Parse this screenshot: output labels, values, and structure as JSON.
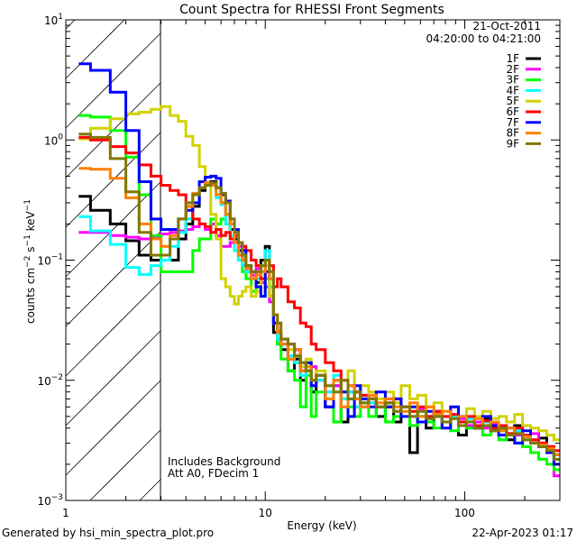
{
  "chart_data": {
    "type": "line",
    "style": "step-histogram",
    "title": "Count Spectra for RHESSI Front Segments",
    "xlabel": "Energy (keV)",
    "ylabel": {
      "base": "counts cm",
      "e1": "−2",
      "mid1": " s",
      "e2": "−1",
      "mid2": " keV",
      "e3": "−1"
    },
    "xscale": "log",
    "yscale": "log",
    "xlim": [
      1,
      300
    ],
    "ylim": [
      0.001,
      10
    ],
    "x_tick_labels": [
      "1",
      "10",
      "100"
    ],
    "y_tick_labels": [
      {
        "base": "10",
        "exp": "−3",
        "value": 0.001
      },
      {
        "base": "10",
        "exp": "−2",
        "value": 0.01
      },
      {
        "base": "10",
        "exp": "−1",
        "value": 0.1
      },
      {
        "base": "10",
        "exp": "0",
        "value": 1
      },
      {
        "base": "10",
        "exp": "1",
        "value": 10
      }
    ],
    "hatched_region_keV": [
      1,
      3
    ],
    "legend_header": {
      "date": "21-Oct-2011",
      "time_range": "04:20:00 to 04:21:00"
    },
    "legend_placement": "top-right",
    "annotations": [
      "Includes Background",
      "Att A0, FDecim 1"
    ],
    "energy_edges_keV": [
      1.16,
      1.33,
      1.67,
      2,
      2.33,
      2.67,
      3,
      3.33,
      3.67,
      4,
      4.33,
      4.67,
      5,
      5.33,
      5.67,
      6,
      6.33,
      6.67,
      7,
      7.33,
      7.67,
      8,
      8.5,
      9,
      9.5,
      10,
      10.5,
      11,
      11.5,
      12,
      13,
      14,
      15,
      16,
      17,
      18,
      20,
      22,
      24,
      26,
      28,
      30,
      33,
      36,
      40,
      44,
      48,
      53,
      58,
      64,
      70,
      77,
      85,
      93,
      102,
      112,
      123,
      135,
      148,
      162,
      178,
      195,
      214,
      235,
      258,
      280,
      300
    ],
    "series": [
      {
        "name": "1F",
        "color": "#000000",
        "values": [
          0.34,
          0.26,
          0.2,
          0.145,
          0.11,
          0.1,
          0.1,
          0.1,
          0.15,
          0.2,
          0.28,
          0.38,
          0.42,
          0.45,
          0.4,
          0.3,
          0.24,
          0.18,
          0.15,
          0.12,
          0.1,
          0.08,
          0.08,
          0.065,
          0.1,
          0.13,
          0.05,
          0.025,
          0.02,
          0.018,
          0.012,
          0.015,
          0.01,
          0.012,
          0.008,
          0.01,
          0.006,
          0.009,
          0.0045,
          0.007,
          0.008,
          0.006,
          0.007,
          0.005,
          0.006,
          0.0045,
          0.006,
          0.0025,
          0.005,
          0.004,
          0.0055,
          0.0045,
          0.005,
          0.0035,
          0.0045,
          0.004,
          0.0048,
          0.0038,
          0.004,
          0.0032,
          0.0042,
          0.0035,
          0.003,
          0.0033,
          0.0028,
          0.0024
        ]
      },
      {
        "name": "2F",
        "color": "#ff00ff",
        "values": [
          0.17,
          0.17,
          0.16,
          0.155,
          0.15,
          0.155,
          0.165,
          0.17,
          0.175,
          0.18,
          0.19,
          0.2,
          0.18,
          0.2,
          0.16,
          0.13,
          0.13,
          0.14,
          0.12,
          0.13,
          0.1,
          0.09,
          0.075,
          0.085,
          0.065,
          0.06,
          0.045,
          0.03,
          0.025,
          0.022,
          0.02,
          0.018,
          0.014,
          0.012,
          0.013,
          0.01,
          0.008,
          0.009,
          0.007,
          0.008,
          0.006,
          0.007,
          0.0065,
          0.006,
          0.007,
          0.0055,
          0.006,
          0.005,
          0.0058,
          0.005,
          0.0052,
          0.0045,
          0.005,
          0.0048,
          0.0042,
          0.0045,
          0.004,
          0.0043,
          0.0038,
          0.004,
          0.0035,
          0.0032,
          0.0036,
          0.003,
          0.0028,
          0.0016
        ]
      },
      {
        "name": "3F",
        "color": "#00ff00",
        "values": [
          1.6,
          1.55,
          1.2,
          0.72,
          0.35,
          0.16,
          0.08,
          0.08,
          0.08,
          0.08,
          0.12,
          0.15,
          0.15,
          0.22,
          0.2,
          0.22,
          0.2,
          0.15,
          0.12,
          0.1,
          0.08,
          0.07,
          0.055,
          0.06,
          0.05,
          0.07,
          0.06,
          0.03,
          0.02,
          0.015,
          0.012,
          0.01,
          0.006,
          0.011,
          0.005,
          0.008,
          0.007,
          0.0045,
          0.007,
          0.006,
          0.005,
          0.0065,
          0.005,
          0.006,
          0.0045,
          0.005,
          0.006,
          0.0042,
          0.005,
          0.0045,
          0.004,
          0.005,
          0.0038,
          0.0045,
          0.004,
          0.0042,
          0.0035,
          0.004,
          0.0032,
          0.0036,
          0.003,
          0.0028,
          0.0025,
          0.0022,
          0.002,
          0.0018
        ]
      },
      {
        "name": "4F",
        "color": "#00ffff",
        "values": [
          0.23,
          0.175,
          0.135,
          0.087,
          0.076,
          0.09,
          0.1,
          0.13,
          0.17,
          0.22,
          0.3,
          0.4,
          0.44,
          0.42,
          0.33,
          0.29,
          0.2,
          0.16,
          0.12,
          0.1,
          0.09,
          0.08,
          0.07,
          0.07,
          0.09,
          0.12,
          0.06,
          0.03,
          0.022,
          0.02,
          0.016,
          0.014,
          0.011,
          0.012,
          0.009,
          0.01,
          0.008,
          0.011,
          0.007,
          0.008,
          0.006,
          0.0075,
          0.0065,
          0.006,
          0.007,
          0.0055,
          0.006,
          0.005,
          0.0055,
          0.0048,
          0.0052,
          0.0045,
          0.005,
          0.0042,
          0.0048,
          0.004,
          0.0045,
          0.0038,
          0.004,
          0.0035,
          0.0038,
          0.0032,
          0.003,
          0.0028,
          0.0026,
          0.0022
        ]
      },
      {
        "name": "5F",
        "color": "#d2d200",
        "values": [
          1.02,
          1.25,
          1.5,
          1.65,
          1.7,
          1.8,
          1.9,
          1.6,
          1.43,
          1.07,
          0.9,
          0.6,
          0.42,
          0.24,
          0.15,
          0.07,
          0.06,
          0.05,
          0.043,
          0.05,
          0.055,
          0.06,
          0.05,
          0.055,
          0.07,
          0.09,
          0.05,
          0.03,
          0.026,
          0.02,
          0.018,
          0.016,
          0.013,
          0.015,
          0.01,
          0.012,
          0.009,
          0.01,
          0.008,
          0.012,
          0.007,
          0.009,
          0.008,
          0.007,
          0.008,
          0.0065,
          0.009,
          0.007,
          0.0075,
          0.006,
          0.0065,
          0.0055,
          0.006,
          0.005,
          0.0058,
          0.005,
          0.0055,
          0.0048,
          0.005,
          0.0045,
          0.0052,
          0.0042,
          0.004,
          0.0038,
          0.0035,
          0.0032
        ]
      },
      {
        "name": "6F",
        "color": "#ff0000",
        "values": [
          1.05,
          1.0,
          0.88,
          0.78,
          0.62,
          0.5,
          0.42,
          0.38,
          0.35,
          0.28,
          0.22,
          0.2,
          0.19,
          0.17,
          0.18,
          0.16,
          0.17,
          0.15,
          0.16,
          0.14,
          0.13,
          0.12,
          0.1,
          0.09,
          0.07,
          0.1,
          0.09,
          0.06,
          0.07,
          0.06,
          0.045,
          0.04,
          0.03,
          0.028,
          0.02,
          0.018,
          0.014,
          0.012,
          0.01,
          0.009,
          0.008,
          0.0075,
          0.007,
          0.006,
          0.0065,
          0.007,
          0.006,
          0.0055,
          0.006,
          0.005,
          0.0055,
          0.005,
          0.0052,
          0.0045,
          0.005,
          0.0042,
          0.0046,
          0.004,
          0.0042,
          0.0036,
          0.004,
          0.0035,
          0.0032,
          0.003,
          0.0028,
          0.0026
        ]
      },
      {
        "name": "7F",
        "color": "#0000ff",
        "values": [
          4.3,
          3.8,
          2.5,
          1.2,
          0.45,
          0.22,
          0.18,
          0.18,
          0.22,
          0.26,
          0.3,
          0.45,
          0.49,
          0.5,
          0.48,
          0.35,
          0.31,
          0.22,
          0.18,
          0.14,
          0.12,
          0.09,
          0.07,
          0.06,
          0.05,
          0.08,
          0.07,
          0.03,
          0.025,
          0.02,
          0.015,
          0.018,
          0.012,
          0.014,
          0.009,
          0.011,
          0.006,
          0.01,
          0.008,
          0.005,
          0.009,
          0.007,
          0.006,
          0.008,
          0.006,
          0.007,
          0.005,
          0.006,
          0.0045,
          0.0055,
          0.005,
          0.004,
          0.006,
          0.005,
          0.0045,
          0.004,
          0.005,
          0.0042,
          0.0035,
          0.004,
          0.003,
          0.0038,
          0.003,
          0.0028,
          0.0025,
          0.002
        ]
      },
      {
        "name": "8F",
        "color": "#ff8000",
        "values": [
          0.58,
          0.57,
          0.48,
          0.33,
          0.2,
          0.15,
          0.13,
          0.16,
          0.22,
          0.28,
          0.36,
          0.4,
          0.44,
          0.42,
          0.35,
          0.3,
          0.24,
          0.2,
          0.14,
          0.11,
          0.1,
          0.085,
          0.07,
          0.075,
          0.08,
          0.1,
          0.07,
          0.035,
          0.025,
          0.02,
          0.015,
          0.018,
          0.012,
          0.013,
          0.01,
          0.011,
          0.007,
          0.01,
          0.006,
          0.009,
          0.007,
          0.006,
          0.0075,
          0.0065,
          0.007,
          0.006,
          0.0055,
          0.0065,
          0.005,
          0.006,
          0.0052,
          0.0055,
          0.0048,
          0.005,
          0.0045,
          0.0048,
          0.0042,
          0.0045,
          0.0038,
          0.004,
          0.0036,
          0.0034,
          0.003,
          0.0029,
          0.0027,
          0.0024
        ]
      },
      {
        "name": "9F",
        "color": "#807800",
        "values": [
          1.12,
          1.05,
          0.7,
          0.37,
          0.17,
          0.11,
          0.11,
          0.15,
          0.22,
          0.3,
          0.35,
          0.4,
          0.42,
          0.44,
          0.4,
          0.36,
          0.3,
          0.22,
          0.17,
          0.14,
          0.11,
          0.09,
          0.08,
          0.08,
          0.09,
          0.1,
          0.08,
          0.035,
          0.03,
          0.022,
          0.02,
          0.016,
          0.014,
          0.012,
          0.01,
          0.011,
          0.009,
          0.008,
          0.01,
          0.007,
          0.008,
          0.0065,
          0.007,
          0.006,
          0.0065,
          0.0055,
          0.006,
          0.005,
          0.0055,
          0.0048,
          0.005,
          0.0045,
          0.0048,
          0.0042,
          0.0045,
          0.004,
          0.0042,
          0.0038,
          0.004,
          0.0035,
          0.0036,
          0.0032,
          0.003,
          0.0028,
          0.0026,
          0.0022
        ]
      }
    ]
  },
  "footer": {
    "generated_by": "Generated by hsi_min_spectra_plot.pro",
    "timestamp": "22-Apr-2023 01:17"
  }
}
